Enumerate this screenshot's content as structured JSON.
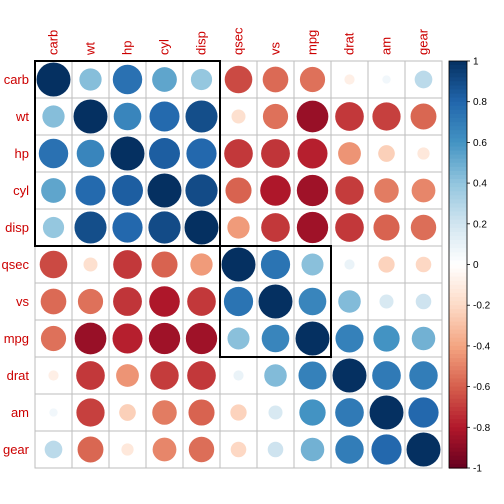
{
  "chart_data": {
    "type": "heatmap",
    "variables": [
      "carb",
      "wt",
      "hp",
      "cyl",
      "disp",
      "qsec",
      "vs",
      "mpg",
      "drat",
      "am",
      "gear"
    ],
    "value_range": [
      -1,
      1
    ],
    "colorbar_ticks": [
      "1",
      "0.8",
      "0.6",
      "0.4",
      "0.2",
      "0",
      "-0.2",
      "-0.4",
      "-0.6",
      "-0.8",
      "-1"
    ],
    "cluster_boxes": [
      {
        "from": "carb",
        "to": "disp"
      },
      {
        "from": "qsec",
        "to": "mpg"
      }
    ],
    "matrix": [
      [
        1.0,
        0.43,
        0.75,
        0.53,
        0.39,
        -0.66,
        -0.57,
        -0.55,
        -0.09,
        0.06,
        0.27
      ],
      [
        0.43,
        1.0,
        0.66,
        0.78,
        0.89,
        -0.17,
        -0.55,
        -0.87,
        -0.71,
        -0.69,
        -0.58
      ],
      [
        0.75,
        0.66,
        1.0,
        0.83,
        0.79,
        -0.71,
        -0.72,
        -0.78,
        -0.45,
        -0.24,
        -0.13
      ],
      [
        0.53,
        0.78,
        0.83,
        1.0,
        0.9,
        -0.59,
        -0.81,
        -0.85,
        -0.7,
        -0.52,
        -0.49
      ],
      [
        0.39,
        0.89,
        0.79,
        0.9,
        1.0,
        -0.43,
        -0.71,
        -0.85,
        -0.71,
        -0.59,
        -0.56
      ],
      [
        -0.66,
        -0.17,
        -0.71,
        -0.59,
        -0.43,
        1.0,
        0.74,
        0.42,
        0.09,
        -0.23,
        -0.21
      ],
      [
        -0.57,
        -0.55,
        -0.72,
        -0.81,
        -0.71,
        0.74,
        1.0,
        0.66,
        0.44,
        0.17,
        0.21
      ],
      [
        -0.55,
        -0.87,
        -0.78,
        -0.85,
        -0.85,
        0.42,
        0.66,
        1.0,
        0.68,
        0.6,
        0.48
      ],
      [
        -0.09,
        -0.71,
        -0.45,
        -0.7,
        -0.71,
        0.09,
        0.44,
        0.68,
        1.0,
        0.71,
        0.7
      ],
      [
        0.06,
        -0.69,
        -0.24,
        -0.52,
        -0.59,
        -0.23,
        0.17,
        0.6,
        0.71,
        1.0,
        0.79
      ],
      [
        0.27,
        -0.58,
        -0.13,
        -0.49,
        -0.56,
        -0.21,
        0.21,
        0.48,
        0.7,
        0.79,
        1.0
      ]
    ]
  },
  "colors": {
    "palette": [
      "#67001F",
      "#B2182B",
      "#D6604D",
      "#F4A582",
      "#FDDBC7",
      "#FFFFFF",
      "#D1E5F0",
      "#92C5DE",
      "#4393C3",
      "#2166AC",
      "#053061"
    ],
    "label": "#CC0000",
    "grid": "#BEBEBE",
    "box": "#000000"
  }
}
